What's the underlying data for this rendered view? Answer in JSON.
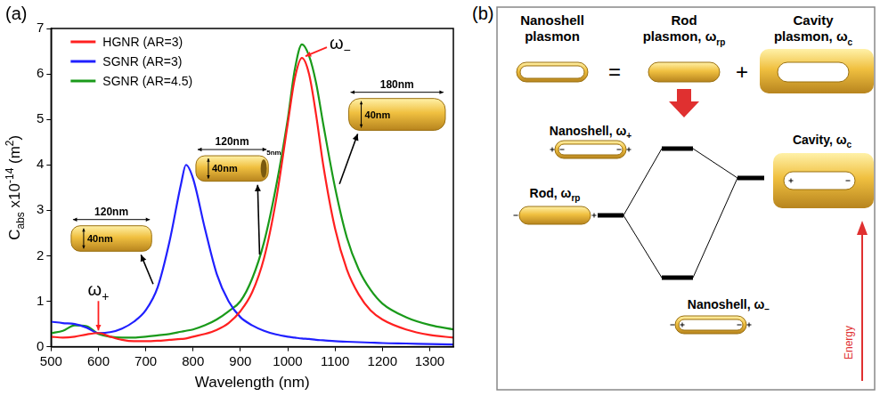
{
  "panel_labels": [
    "(a)",
    "(b)"
  ],
  "chart_data": {
    "type": "line",
    "xlabel": "Wavelength (nm)",
    "ylabel": [
      "C",
      {
        "sub": "abs"
      },
      " x10",
      {
        "sup": "-14"
      },
      " (m",
      {
        "sup": "2"
      },
      ")"
    ],
    "x": [
      500,
      525,
      550,
      575,
      600,
      625,
      650,
      675,
      700,
      725,
      750,
      775,
      785,
      800,
      825,
      850,
      875,
      900,
      925,
      950,
      975,
      1000,
      1015,
      1030,
      1045,
      1060,
      1075,
      1100,
      1125,
      1150,
      1175,
      1200,
      1250,
      1300,
      1350
    ],
    "series": [
      {
        "name": "HGNR (AR=3)",
        "color": "#ff2020",
        "values": [
          0.22,
          0.2,
          0.22,
          0.27,
          0.3,
          0.22,
          0.15,
          0.12,
          0.12,
          0.13,
          0.15,
          0.17,
          0.18,
          0.22,
          0.28,
          0.37,
          0.52,
          0.78,
          1.2,
          1.95,
          3.2,
          4.9,
          5.9,
          6.35,
          6.0,
          5.1,
          4.0,
          2.6,
          1.7,
          1.15,
          0.8,
          0.6,
          0.38,
          0.26,
          0.2
        ]
      },
      {
        "name": "SGNR (AR=3)",
        "color": "#2020ff",
        "values": [
          0.55,
          0.52,
          0.5,
          0.42,
          0.3,
          0.32,
          0.4,
          0.55,
          0.8,
          1.3,
          2.3,
          3.6,
          4.0,
          3.7,
          2.6,
          1.6,
          1.0,
          0.65,
          0.47,
          0.35,
          0.27,
          0.22,
          0.2,
          0.18,
          0.17,
          0.15,
          0.14,
          0.12,
          0.11,
          0.1,
          0.09,
          0.08,
          0.07,
          0.06,
          0.05
        ]
      },
      {
        "name": "SGNR (AR=4.5)",
        "color": "#1a9a1a",
        "values": [
          0.3,
          0.35,
          0.47,
          0.45,
          0.28,
          0.22,
          0.2,
          0.2,
          0.22,
          0.25,
          0.28,
          0.33,
          0.35,
          0.38,
          0.47,
          0.6,
          0.78,
          1.0,
          1.5,
          2.3,
          3.5,
          5.0,
          6.1,
          6.65,
          6.4,
          5.8,
          4.9,
          3.5,
          2.4,
          1.7,
          1.25,
          0.95,
          0.65,
          0.48,
          0.38
        ]
      }
    ],
    "xlim": [
      500,
      1350
    ],
    "xticks": [
      500,
      600,
      700,
      800,
      900,
      1000,
      1100,
      1200,
      1300
    ],
    "ylim": [
      0,
      7
    ],
    "yticks": [
      0,
      1,
      2,
      3,
      4,
      5,
      6,
      7
    ],
    "grid": false,
    "legend": "upper left",
    "annotations": [
      {
        "text": [
          "ω",
          {
            "sub": "+"
          }
        ],
        "x": 600,
        "y": 0.3
      },
      {
        "text": [
          "ω",
          {
            "sub": "−"
          }
        ],
        "x": 1030,
        "y": 6.35
      }
    ],
    "insets": [
      {
        "length": "120nm",
        "diameter": "40nm",
        "series": "SGNR (AR=3)"
      },
      {
        "length": "120nm",
        "diameter": "40nm",
        "shell": "5nm",
        "series": "HGNR (AR=3)"
      },
      {
        "length": "180nm",
        "diameter": "40nm",
        "series": "SGNR (AR=4.5)"
      }
    ]
  },
  "diagram": {
    "title_row": [
      {
        "lines": [
          [
            "Nanoshell"
          ],
          [
            "plasmon"
          ]
        ]
      },
      {
        "lines": [
          [
            "Rod"
          ],
          [
            "plasmon, ω",
            {
              "sub": "rp"
            }
          ]
        ]
      },
      {
        "lines": [
          [
            "Cavity"
          ],
          [
            "plasmon, ω",
            {
              "sub": "c"
            }
          ]
        ]
      }
    ],
    "operators": [
      "=",
      "+"
    ],
    "levels": {
      "upper": [
        "Nanoshell, ω",
        {
          "sub": "+"
        }
      ],
      "rod": [
        "Rod, ω",
        {
          "sub": "rp"
        }
      ],
      "cavity": [
        "Cavity, ω",
        {
          "sub": "c"
        }
      ],
      "lower": [
        "Nanoshell, ω",
        {
          "sub": "−"
        }
      ]
    },
    "energy_label": "Energy"
  }
}
